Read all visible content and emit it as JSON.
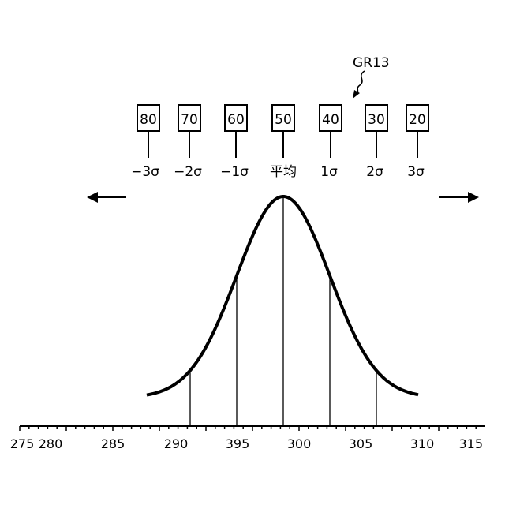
{
  "figure": {
    "reference_label": "GR13",
    "scores": [
      {
        "value": "80",
        "sigma": "−3σ"
      },
      {
        "value": "70",
        "sigma": "−2σ"
      },
      {
        "value": "60",
        "sigma": "−1σ"
      },
      {
        "value": "50",
        "sigma": "平均"
      },
      {
        "value": "40",
        "sigma": "1σ"
      },
      {
        "value": "30",
        "sigma": "2σ"
      },
      {
        "value": "20",
        "sigma": "3σ"
      }
    ],
    "axis_ticks": [
      "275",
      "280",
      "285",
      "290",
      "395",
      "300",
      "305",
      "310",
      "315"
    ]
  }
}
